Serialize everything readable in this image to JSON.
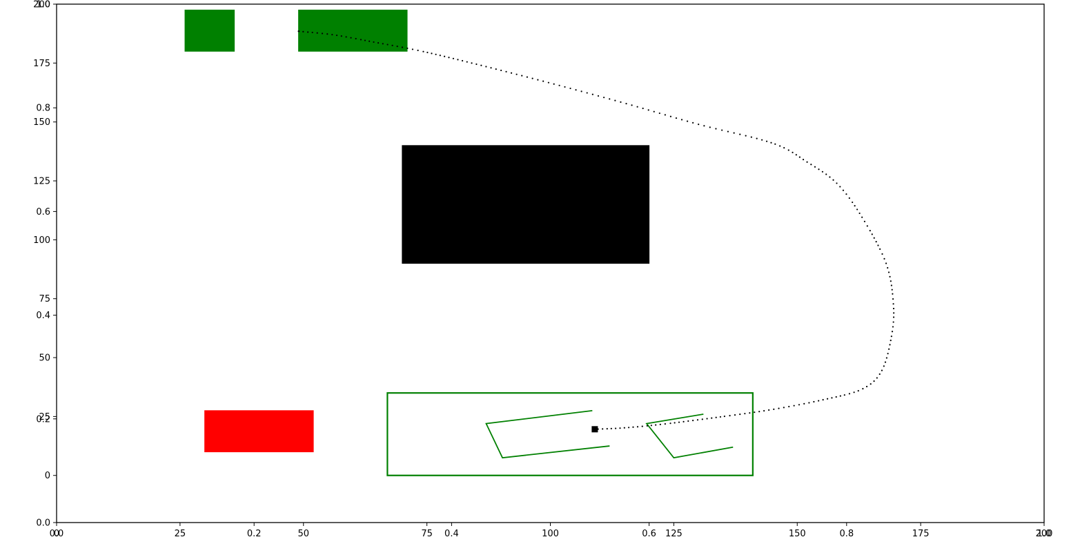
{
  "chart_data": {
    "type": "scatter",
    "title": "",
    "xlabel": "",
    "ylabel": "",
    "xlim": [
      0,
      200
    ],
    "ylim": [
      -20,
      200
    ],
    "grid": false,
    "legend": "none",
    "x_ticks_primary": [
      "0",
      "25",
      "50",
      "75",
      "100",
      "125",
      "150",
      "175",
      "200"
    ],
    "x_ticks_primary_values": [
      0,
      25,
      50,
      75,
      100,
      125,
      150,
      175,
      200
    ],
    "y_ticks_primary": [
      "0",
      "25",
      "50",
      "75",
      "100",
      "125",
      "150",
      "175",
      "200"
    ],
    "y_ticks_primary_values": [
      0,
      25,
      50,
      75,
      100,
      125,
      150,
      175,
      200
    ],
    "x_ticks_secondary": [
      "0.0",
      "0.2",
      "0.4",
      "0.6",
      "0.8",
      "1.0"
    ],
    "x_ticks_secondary_values": [
      0,
      0.2,
      0.4,
      0.6,
      0.8,
      1.0
    ],
    "y_ticks_secondary": [
      "0.0",
      "0.2",
      "0.4",
      "0.6",
      "0.8",
      "1.0"
    ],
    "y_ticks_secondary_values": [
      0,
      0.2,
      0.4,
      0.6,
      0.8,
      1.0
    ],
    "rectangles": [
      {
        "name": "obstacle",
        "color": "#000000",
        "x": 70,
        "y": 90,
        "width": 50,
        "height": 50,
        "filled": true
      },
      {
        "name": "green-block-left",
        "color": "#008000",
        "x": 26,
        "y": 180,
        "width": 10,
        "height": 17.5,
        "filled": true
      },
      {
        "name": "green-block-right",
        "color": "#008000",
        "x": 49,
        "y": 180,
        "width": 22,
        "height": 17.5,
        "filled": true
      },
      {
        "name": "red-block",
        "color": "#ff0000",
        "x": 30,
        "y": 10,
        "width": 22,
        "height": 17.5,
        "filled": true
      },
      {
        "name": "parking-zone",
        "color": "#008000",
        "x": 67,
        "y": 0,
        "width": 74,
        "height": 35,
        "filled": false
      }
    ],
    "polylines": [
      {
        "name": "slot-left",
        "color": "#008000",
        "points": [
          [
            108.5,
            27.5
          ],
          [
            87,
            22
          ],
          [
            90.3,
            7.5
          ],
          [
            112,
            12.5
          ]
        ]
      },
      {
        "name": "slot-right",
        "color": "#008000",
        "points": [
          [
            131,
            26
          ],
          [
            119.5,
            22
          ],
          [
            125,
            7.5
          ],
          [
            137,
            12
          ]
        ]
      }
    ],
    "trajectory_color": "#000000",
    "trajectory_waypoints": [
      [
        49,
        188.5
      ],
      [
        56,
        187
      ],
      [
        64,
        184
      ],
      [
        74,
        180
      ],
      [
        86,
        174
      ],
      [
        100,
        166.5
      ],
      [
        115,
        158
      ],
      [
        130,
        149
      ],
      [
        145,
        141
      ],
      [
        152,
        133
      ],
      [
        158,
        124
      ],
      [
        163,
        110
      ],
      [
        168,
        90
      ],
      [
        169.5,
        72
      ],
      [
        169,
        58
      ],
      [
        167,
        44
      ],
      [
        163,
        36.5
      ],
      [
        155,
        32
      ],
      [
        145,
        28
      ],
      [
        135,
        25
      ],
      [
        123,
        21.8
      ],
      [
        115,
        20.2
      ],
      [
        109,
        19.6
      ]
    ],
    "end_marker": {
      "x": 109,
      "y": 19.6,
      "color": "#000000"
    }
  }
}
